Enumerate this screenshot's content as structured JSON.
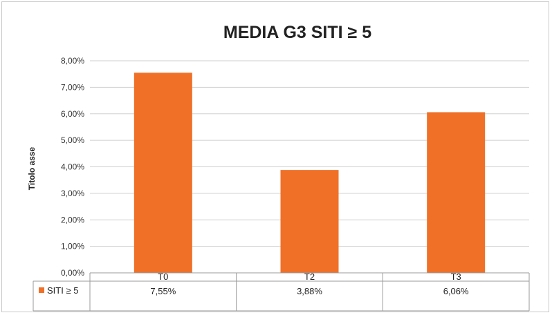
{
  "chart_data": {
    "type": "bar",
    "title": "MEDIA  G3 SITI ≥ 5",
    "ylabel": "Titolo asse",
    "xlabel": "",
    "categories": [
      "T0",
      "T2",
      "T3"
    ],
    "series": [
      {
        "name": "SITI ≥ 5",
        "values": [
          7.55,
          3.88,
          6.06
        ],
        "color": "#f07028"
      }
    ],
    "data_labels": [
      "7,55%",
      "3,88%",
      "6,06%"
    ],
    "ylim": [
      0,
      8
    ],
    "yticks": [
      "0,00%",
      "1,00%",
      "2,00%",
      "3,00%",
      "4,00%",
      "5,00%",
      "6,00%",
      "7,00%",
      "8,00%"
    ],
    "grid": true,
    "legend": "data-table"
  }
}
